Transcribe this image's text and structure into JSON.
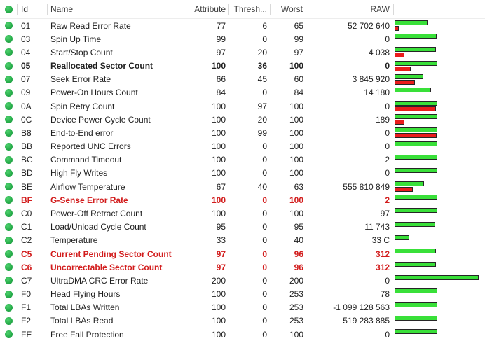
{
  "colors": {
    "ok_dot_green": "#28ae4b",
    "bar_green": "#39e039",
    "bar_red": "#ea1c1c",
    "alert_text_red": "#d21c1c",
    "normal_text": "#1e1e1e",
    "header_text": "#3c3c3c"
  },
  "table": {
    "header": {
      "status_icon": "ok-status-icon",
      "id": "Id",
      "name": "Name",
      "attribute": "Attribute",
      "threshold": "Thresh...",
      "worst": "Worst",
      "raw": "RAW"
    },
    "bars_legend": {
      "green_bar_means": "attribute-value",
      "red_bar_means": "threshold-value",
      "scale_units_full": 100
    },
    "rows": [
      {
        "id": "01",
        "name": "Raw Read Error Rate",
        "attribute": 77,
        "threshold": 6,
        "worst": 65,
        "raw": "52 702 640",
        "style": "normal"
      },
      {
        "id": "03",
        "name": "Spin Up Time",
        "attribute": 99,
        "threshold": 0,
        "worst": 99,
        "raw": "0",
        "style": "normal"
      },
      {
        "id": "04",
        "name": "Start/Stop Count",
        "attribute": 97,
        "threshold": 20,
        "worst": 97,
        "raw": "4 038",
        "style": "normal"
      },
      {
        "id": "05",
        "name": "Reallocated Sector Count",
        "attribute": 100,
        "threshold": 36,
        "worst": 100,
        "raw": "0",
        "style": "bold"
      },
      {
        "id": "07",
        "name": "Seek Error Rate",
        "attribute": 66,
        "threshold": 45,
        "worst": 60,
        "raw": "3 845 920",
        "style": "normal"
      },
      {
        "id": "09",
        "name": "Power-On Hours Count",
        "attribute": 84,
        "threshold": 0,
        "worst": 84,
        "raw": "14 180",
        "style": "normal"
      },
      {
        "id": "0A",
        "name": "Spin Retry Count",
        "attribute": 100,
        "threshold": 97,
        "worst": 100,
        "raw": "0",
        "style": "normal"
      },
      {
        "id": "0C",
        "name": "Device Power Cycle Count",
        "attribute": 100,
        "threshold": 20,
        "worst": 100,
        "raw": "189",
        "style": "normal"
      },
      {
        "id": "B8",
        "name": "End-to-End error",
        "attribute": 100,
        "threshold": 99,
        "worst": 100,
        "raw": "0",
        "style": "normal"
      },
      {
        "id": "BB",
        "name": "Reported UNC Errors",
        "attribute": 100,
        "threshold": 0,
        "worst": 100,
        "raw": "0",
        "style": "normal"
      },
      {
        "id": "BC",
        "name": "Command Timeout",
        "attribute": 100,
        "threshold": 0,
        "worst": 100,
        "raw": "2",
        "style": "normal"
      },
      {
        "id": "BD",
        "name": "High Fly Writes",
        "attribute": 100,
        "threshold": 0,
        "worst": 100,
        "raw": "0",
        "style": "normal"
      },
      {
        "id": "BE",
        "name": "Airflow Temperature",
        "attribute": 67,
        "threshold": 40,
        "worst": 63,
        "raw": "555 810 849",
        "style": "normal"
      },
      {
        "id": "BF",
        "name": "G-Sense Error Rate",
        "attribute": 100,
        "threshold": 0,
        "worst": 100,
        "raw": "2",
        "style": "alert"
      },
      {
        "id": "C0",
        "name": "Power-Off Retract Count",
        "attribute": 100,
        "threshold": 0,
        "worst": 100,
        "raw": "97",
        "style": "normal"
      },
      {
        "id": "C1",
        "name": "Load/Unload Cycle Count",
        "attribute": 95,
        "threshold": 0,
        "worst": 95,
        "raw": "11 743",
        "style": "normal"
      },
      {
        "id": "C2",
        "name": "Temperature",
        "attribute": 33,
        "threshold": 0,
        "worst": 40,
        "raw": "33 C",
        "style": "normal"
      },
      {
        "id": "C5",
        "name": "Current Pending Sector Count",
        "attribute": 97,
        "threshold": 0,
        "worst": 96,
        "raw": "312",
        "style": "alert"
      },
      {
        "id": "C6",
        "name": "Uncorrectable Sector Count",
        "attribute": 97,
        "threshold": 0,
        "worst": 96,
        "raw": "312",
        "style": "alert"
      },
      {
        "id": "C7",
        "name": "UltraDMA CRC Error Rate",
        "attribute": 200,
        "threshold": 0,
        "worst": 200,
        "raw": "0",
        "style": "normal"
      },
      {
        "id": "F0",
        "name": "Head Flying Hours",
        "attribute": 100,
        "threshold": 0,
        "worst": 253,
        "raw": "78",
        "style": "normal"
      },
      {
        "id": "F1",
        "name": "Total LBAs Written",
        "attribute": 100,
        "threshold": 0,
        "worst": 253,
        "raw": "-1 099 128 563",
        "style": "normal"
      },
      {
        "id": "F2",
        "name": "Total LBAs Read",
        "attribute": 100,
        "threshold": 0,
        "worst": 253,
        "raw": "519 283 885",
        "style": "normal"
      },
      {
        "id": "FE",
        "name": "Free Fall Protection",
        "attribute": 100,
        "threshold": 0,
        "worst": 100,
        "raw": "0",
        "style": "normal"
      }
    ]
  }
}
